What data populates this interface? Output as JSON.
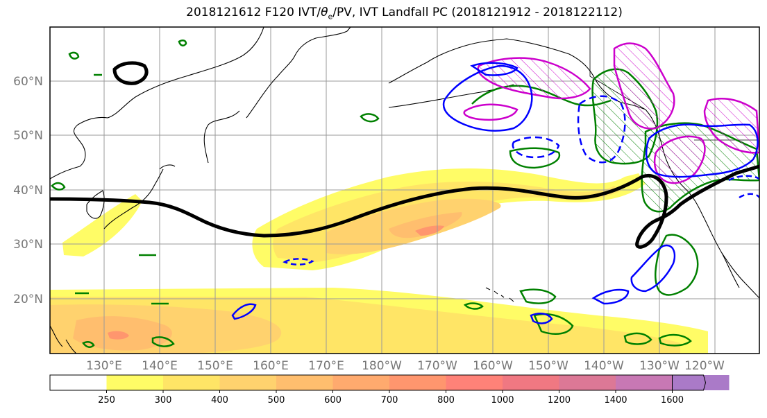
{
  "title": {
    "prefix": "2018121612 F120 IVT/",
    "theta": "θ",
    "theta_sub": "e",
    "suffix": "/PV, IVT Landfall PC (2018121912 - 2018122112)"
  },
  "axes": {
    "lat_labels": [
      "60°N",
      "50°N",
      "40°N",
      "30°N",
      "20°N"
    ],
    "lon_labels": [
      "130°E",
      "140°E",
      "150°E",
      "160°E",
      "170°E",
      "180°W",
      "170°W",
      "160°W",
      "150°W",
      "140°W",
      "130°W",
      "120°W"
    ]
  },
  "colorbar": {
    "ticks": [
      "250",
      "300",
      "400",
      "500",
      "600",
      "700",
      "800",
      "1000",
      "1200",
      "1400",
      "1600"
    ],
    "colors": [
      "#ffffff",
      "#fffc66",
      "#ffe566",
      "#ffd26e",
      "#ffbe6e",
      "#ffaa6e",
      "#ff966e",
      "#ff8278",
      "#f07882",
      "#dc7896",
      "#c878b4",
      "#aa7ac8"
    ]
  },
  "colors": {
    "pv_contour": "#000000",
    "theta_contour": "#008000",
    "ivt_positive": "#0000ff",
    "ivt_negative": "#cc00cc",
    "grid": "#999999"
  }
}
